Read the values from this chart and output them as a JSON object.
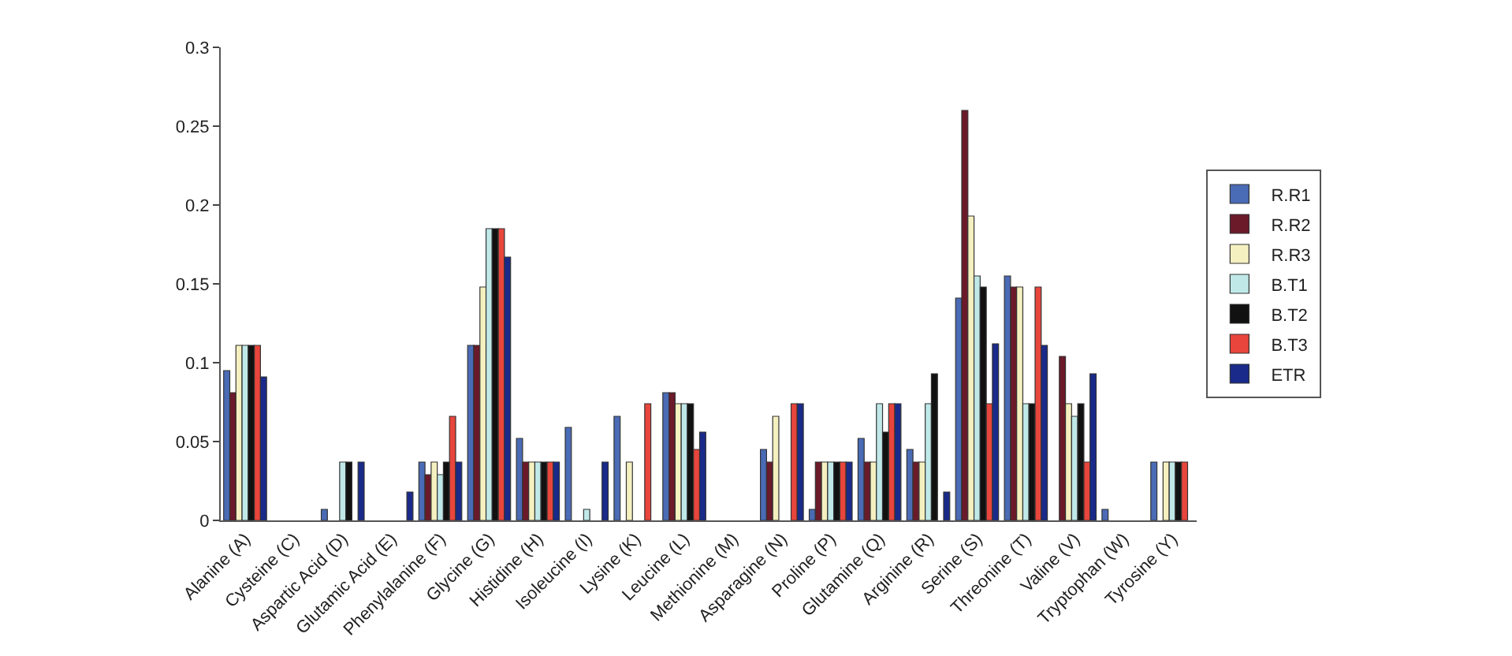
{
  "chart_data": {
    "type": "bar",
    "categories": [
      "Alanine (A)",
      "Cysteine (C)",
      "Aspartic Acid (D)",
      "Glutamic Acid (E)",
      "Phenylalanine (F)",
      "Glycine (G)",
      "Histidine (H)",
      "Isoleucine (I)",
      "Lysine (K)",
      "Leucine (L)",
      "Methionine (M)",
      "Asparagine (N)",
      "Proline (P)",
      "Glutamine (Q)",
      "Arginine (R)",
      "Serine (S)",
      "Threonine (T)",
      "Valine (V)",
      "Tryptophan (W)",
      "Tyrosine (Y)"
    ],
    "series": [
      {
        "name": "R.R1",
        "color": "#4a6bb5",
        "values": [
          0.095,
          0,
          0.007,
          0,
          0.037,
          0.111,
          0.052,
          0.059,
          0.066,
          0.081,
          0,
          0.045,
          0.007,
          0.052,
          0.045,
          0.141,
          0.155,
          0,
          0.007,
          0.037
        ]
      },
      {
        "name": "R.R2",
        "color": "#6b1a2a",
        "values": [
          0.081,
          0,
          0,
          0,
          0.029,
          0.111,
          0.037,
          0,
          0,
          0.081,
          0,
          0.037,
          0.037,
          0.037,
          0.037,
          0.26,
          0.148,
          0.104,
          0,
          0
        ]
      },
      {
        "name": "R.R3",
        "color": "#f5f0c0",
        "values": [
          0.111,
          0,
          0,
          0,
          0.037,
          0.148,
          0.037,
          0,
          0.037,
          0.074,
          0,
          0.066,
          0.037,
          0.037,
          0.037,
          0.193,
          0.148,
          0.074,
          0,
          0.037
        ]
      },
      {
        "name": "B.T1",
        "color": "#c0e8e8",
        "values": [
          0.111,
          0,
          0.037,
          0,
          0.029,
          0.185,
          0.037,
          0.007,
          0,
          0.074,
          0,
          0,
          0.037,
          0.074,
          0.074,
          0.155,
          0.074,
          0.066,
          0,
          0.037
        ]
      },
      {
        "name": "B.T2",
        "color": "#111111",
        "values": [
          0.111,
          0,
          0.037,
          0,
          0.037,
          0.185,
          0.037,
          0,
          0,
          0.074,
          0,
          0,
          0.037,
          0.056,
          0.093,
          0.148,
          0.074,
          0.074,
          0,
          0.037
        ]
      },
      {
        "name": "B.T3",
        "color": "#e8453c",
        "values": [
          0.111,
          0,
          0,
          0,
          0.066,
          0.185,
          0.037,
          0,
          0.074,
          0.045,
          0,
          0.074,
          0.037,
          0.074,
          0,
          0.074,
          0.148,
          0.037,
          0,
          0.037
        ]
      },
      {
        "name": "ETR",
        "color": "#1a2a8a",
        "values": [
          0.091,
          0,
          0.037,
          0.018,
          0.037,
          0.167,
          0.037,
          0.037,
          0,
          0.056,
          0,
          0.074,
          0.037,
          0.074,
          0.018,
          0.112,
          0.111,
          0.093,
          0,
          0
        ]
      }
    ],
    "ylim": [
      0,
      0.3
    ],
    "yticks": [
      0,
      0.05,
      0.1,
      0.15,
      0.2,
      0.25,
      0.3
    ],
    "legend": "right"
  }
}
